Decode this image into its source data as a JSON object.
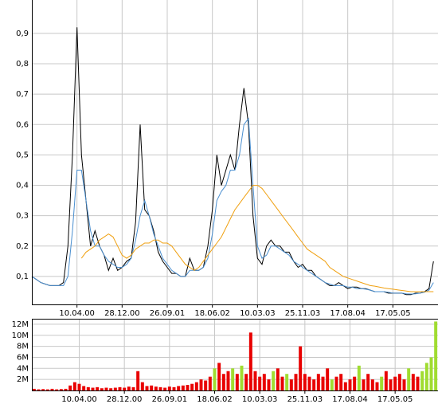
{
  "chart_data": [
    {
      "type": "line",
      "categories": [
        null,
        null,
        null,
        null,
        null,
        null,
        null,
        null,
        null,
        null,
        "10.04.00",
        null,
        null,
        null,
        null,
        null,
        null,
        null,
        null,
        null,
        "28.12.00",
        null,
        null,
        null,
        null,
        null,
        null,
        null,
        null,
        null,
        "26.09.01",
        null,
        null,
        null,
        null,
        null,
        null,
        null,
        null,
        null,
        "18.06.02",
        null,
        null,
        null,
        null,
        null,
        null,
        null,
        null,
        null,
        "10.03.03",
        null,
        null,
        null,
        null,
        null,
        null,
        null,
        null,
        null,
        "25.11.03",
        null,
        null,
        null,
        null,
        null,
        null,
        null,
        null,
        null,
        "17.08.04",
        null,
        null,
        null,
        null,
        null,
        null,
        null,
        null,
        null,
        "17.05.05",
        null,
        null,
        null,
        null,
        null,
        null,
        null,
        null,
        null
      ],
      "series": [
        {
          "color": "#000000",
          "values": [
            0.1,
            0.09,
            0.08,
            0.075,
            0.07,
            0.07,
            0.07,
            0.08,
            0.2,
            0.5,
            0.92,
            0.5,
            0.35,
            0.2,
            0.25,
            0.2,
            0.17,
            0.12,
            0.16,
            0.12,
            0.13,
            0.15,
            0.16,
            0.28,
            0.6,
            0.32,
            0.3,
            0.25,
            0.18,
            0.15,
            0.13,
            0.11,
            0.11,
            0.1,
            0.1,
            0.16,
            0.12,
            0.12,
            0.13,
            0.2,
            0.32,
            0.5,
            0.4,
            0.45,
            0.5,
            0.45,
            0.6,
            0.72,
            0.6,
            0.3,
            0.16,
            0.14,
            0.2,
            0.22,
            0.2,
            0.2,
            0.18,
            0.18,
            0.15,
            0.13,
            0.14,
            0.12,
            0.12,
            0.1,
            0.09,
            0.08,
            0.07,
            0.07,
            0.08,
            0.07,
            0.06,
            0.065,
            0.065,
            0.06,
            0.06,
            0.055,
            0.05,
            0.05,
            0.05,
            0.045,
            0.045,
            0.045,
            0.045,
            0.04,
            0.04,
            0.045,
            0.045,
            0.05,
            0.06,
            0.15
          ]
        },
        {
          "color": "#4a8fd0",
          "values": [
            0.1,
            0.09,
            0.08,
            0.075,
            0.07,
            0.07,
            0.07,
            0.07,
            0.1,
            0.25,
            0.45,
            0.45,
            0.35,
            0.25,
            0.2,
            0.2,
            0.17,
            0.15,
            0.14,
            0.13,
            0.13,
            0.14,
            0.16,
            0.22,
            0.3,
            0.35,
            0.3,
            0.24,
            0.2,
            0.16,
            0.14,
            0.12,
            0.11,
            0.1,
            0.1,
            0.12,
            0.12,
            0.12,
            0.13,
            0.16,
            0.24,
            0.35,
            0.38,
            0.4,
            0.45,
            0.45,
            0.5,
            0.6,
            0.62,
            0.4,
            0.2,
            0.16,
            0.17,
            0.2,
            0.2,
            0.19,
            0.18,
            0.17,
            0.15,
            0.14,
            0.13,
            0.12,
            0.11,
            0.1,
            0.09,
            0.08,
            0.075,
            0.07,
            0.07,
            0.07,
            0.065,
            0.065,
            0.06,
            0.06,
            0.058,
            0.055,
            0.05,
            0.05,
            0.05,
            0.048,
            0.045,
            0.045,
            0.045,
            0.043,
            0.042,
            0.043,
            0.045,
            0.048,
            0.055,
            0.08
          ]
        },
        {
          "color": "#f0a010",
          "values": [
            null,
            null,
            null,
            null,
            null,
            null,
            null,
            null,
            null,
            null,
            null,
            0.16,
            0.18,
            0.19,
            0.2,
            0.22,
            0.23,
            0.24,
            0.23,
            0.2,
            0.17,
            0.16,
            0.17,
            0.19,
            0.2,
            0.21,
            0.21,
            0.22,
            0.22,
            0.21,
            0.21,
            0.2,
            0.18,
            0.16,
            0.14,
            0.13,
            0.12,
            0.13,
            0.15,
            0.17,
            0.19,
            0.21,
            0.23,
            0.26,
            0.29,
            0.32,
            0.34,
            0.36,
            0.38,
            0.4,
            0.4,
            0.39,
            0.37,
            0.35,
            0.33,
            0.31,
            0.29,
            0.27,
            0.25,
            0.23,
            0.21,
            0.19,
            0.18,
            0.17,
            0.16,
            0.15,
            0.13,
            0.12,
            0.11,
            0.1,
            0.095,
            0.09,
            0.085,
            0.08,
            0.075,
            0.07,
            0.068,
            0.065,
            0.062,
            0.06,
            0.058,
            0.056,
            0.054,
            0.052,
            0.05,
            0.05,
            0.05,
            0.05,
            0.05,
            0.05
          ]
        }
      ],
      "ylim": [
        0.008,
        1.01
      ],
      "yticks": [
        {
          "value": 0.1,
          "label": "0,1"
        },
        {
          "value": 0.2,
          "label": "0,2"
        },
        {
          "value": 0.3,
          "label": "0,3"
        },
        {
          "value": 0.4,
          "label": "0,4"
        },
        {
          "value": 0.5,
          "label": "0,5"
        },
        {
          "value": 0.6,
          "label": "0,6"
        },
        {
          "value": 0.7,
          "label": "0,7"
        },
        {
          "value": 0.8,
          "label": "0,8"
        },
        {
          "value": 0.9,
          "label": "0,9"
        }
      ],
      "grid": true
    },
    {
      "type": "bar",
      "categories": [
        null,
        null,
        null,
        null,
        null,
        null,
        null,
        null,
        null,
        null,
        "10.04.00",
        null,
        null,
        null,
        null,
        null,
        null,
        null,
        null,
        null,
        "28.12.00",
        null,
        null,
        null,
        null,
        null,
        null,
        null,
        null,
        null,
        "26.09.01",
        null,
        null,
        null,
        null,
        null,
        null,
        null,
        null,
        null,
        "18.06.02",
        null,
        null,
        null,
        null,
        null,
        null,
        null,
        null,
        null,
        "10.03.03",
        null,
        null,
        null,
        null,
        null,
        null,
        null,
        null,
        null,
        "25.11.03",
        null,
        null,
        null,
        null,
        null,
        null,
        null,
        null,
        null,
        "17.08.04",
        null,
        null,
        null,
        null,
        null,
        null,
        null,
        null,
        null,
        "17.05.05",
        null,
        null,
        null,
        null,
        null,
        null,
        null,
        null,
        null
      ],
      "values": [
        300000,
        200000,
        250000,
        200000,
        300000,
        200000,
        250000,
        300000,
        900000,
        1500000,
        1200000,
        800000,
        600000,
        500000,
        600000,
        400000,
        500000,
        400000,
        500000,
        600000,
        500000,
        700000,
        600000,
        3500000,
        1500000,
        800000,
        900000,
        700000,
        600000,
        500000,
        700000,
        600000,
        800000,
        900000,
        1000000,
        1200000,
        1500000,
        2000000,
        1800000,
        2500000,
        4000000,
        5000000,
        3000000,
        3500000,
        4000000,
        3000000,
        4500000,
        3000000,
        10500000,
        3500000,
        2500000,
        3000000,
        2000000,
        3500000,
        4000000,
        2500000,
        3000000,
        2000000,
        3000000,
        8000000,
        3000000,
        2500000,
        2000000,
        3000000,
        2500000,
        4000000,
        2000000,
        2500000,
        3000000,
        1500000,
        2000000,
        2500000,
        4500000,
        2000000,
        3000000,
        2000000,
        1500000,
        2500000,
        3500000,
        2000000,
        2500000,
        3000000,
        2000000,
        4000000,
        3000000,
        2500000,
        3500000,
        5000000,
        6000000,
        12500000
      ],
      "colors": [
        "#e80000",
        "#e80000",
        "#e80000",
        "#e80000",
        "#e80000",
        "#e80000",
        "#e80000",
        "#e80000",
        "#e80000",
        "#e80000",
        "#e80000",
        "#e80000",
        "#e80000",
        "#e80000",
        "#e80000",
        "#e80000",
        "#e80000",
        "#e80000",
        "#e80000",
        "#e80000",
        "#e80000",
        "#e80000",
        "#e80000",
        "#e80000",
        "#e80000",
        "#e80000",
        "#e80000",
        "#e80000",
        "#e80000",
        "#e80000",
        "#e80000",
        "#e80000",
        "#e80000",
        "#e80000",
        "#e80000",
        "#e80000",
        "#e80000",
        "#e80000",
        "#e80000",
        "#e80000",
        "#a0dc30",
        "#e80000",
        "#e80000",
        "#e80000",
        "#a0dc30",
        "#e80000",
        "#a0dc30",
        "#e80000",
        "#e80000",
        "#e80000",
        "#e80000",
        "#e80000",
        "#e80000",
        "#a0dc30",
        "#e80000",
        "#e80000",
        "#a0dc30",
        "#e80000",
        "#e80000",
        "#e80000",
        "#e80000",
        "#e80000",
        "#e80000",
        "#e80000",
        "#e80000",
        "#e80000",
        "#a0dc30",
        "#e80000",
        "#e80000",
        "#e80000",
        "#e80000",
        "#e80000",
        "#a0dc30",
        "#e80000",
        "#e80000",
        "#e80000",
        "#e80000",
        "#a0dc30",
        "#e80000",
        "#e80000",
        "#e80000",
        "#e80000",
        "#e80000",
        "#a0dc30",
        "#e80000",
        "#e80000",
        "#a0dc30",
        "#a0dc30",
        "#a0dc30",
        "#a0dc30"
      ],
      "ylim": [
        0,
        13000000
      ],
      "yticks": [
        {
          "value": 2000000,
          "label": "2M"
        },
        {
          "value": 4000000,
          "label": "4M"
        },
        {
          "value": 6000000,
          "label": "6M"
        },
        {
          "value": 8000000,
          "label": "8M"
        },
        {
          "value": 10000000,
          "label": "10M"
        },
        {
          "value": 12000000,
          "label": "12M"
        }
      ],
      "grid": true
    }
  ]
}
